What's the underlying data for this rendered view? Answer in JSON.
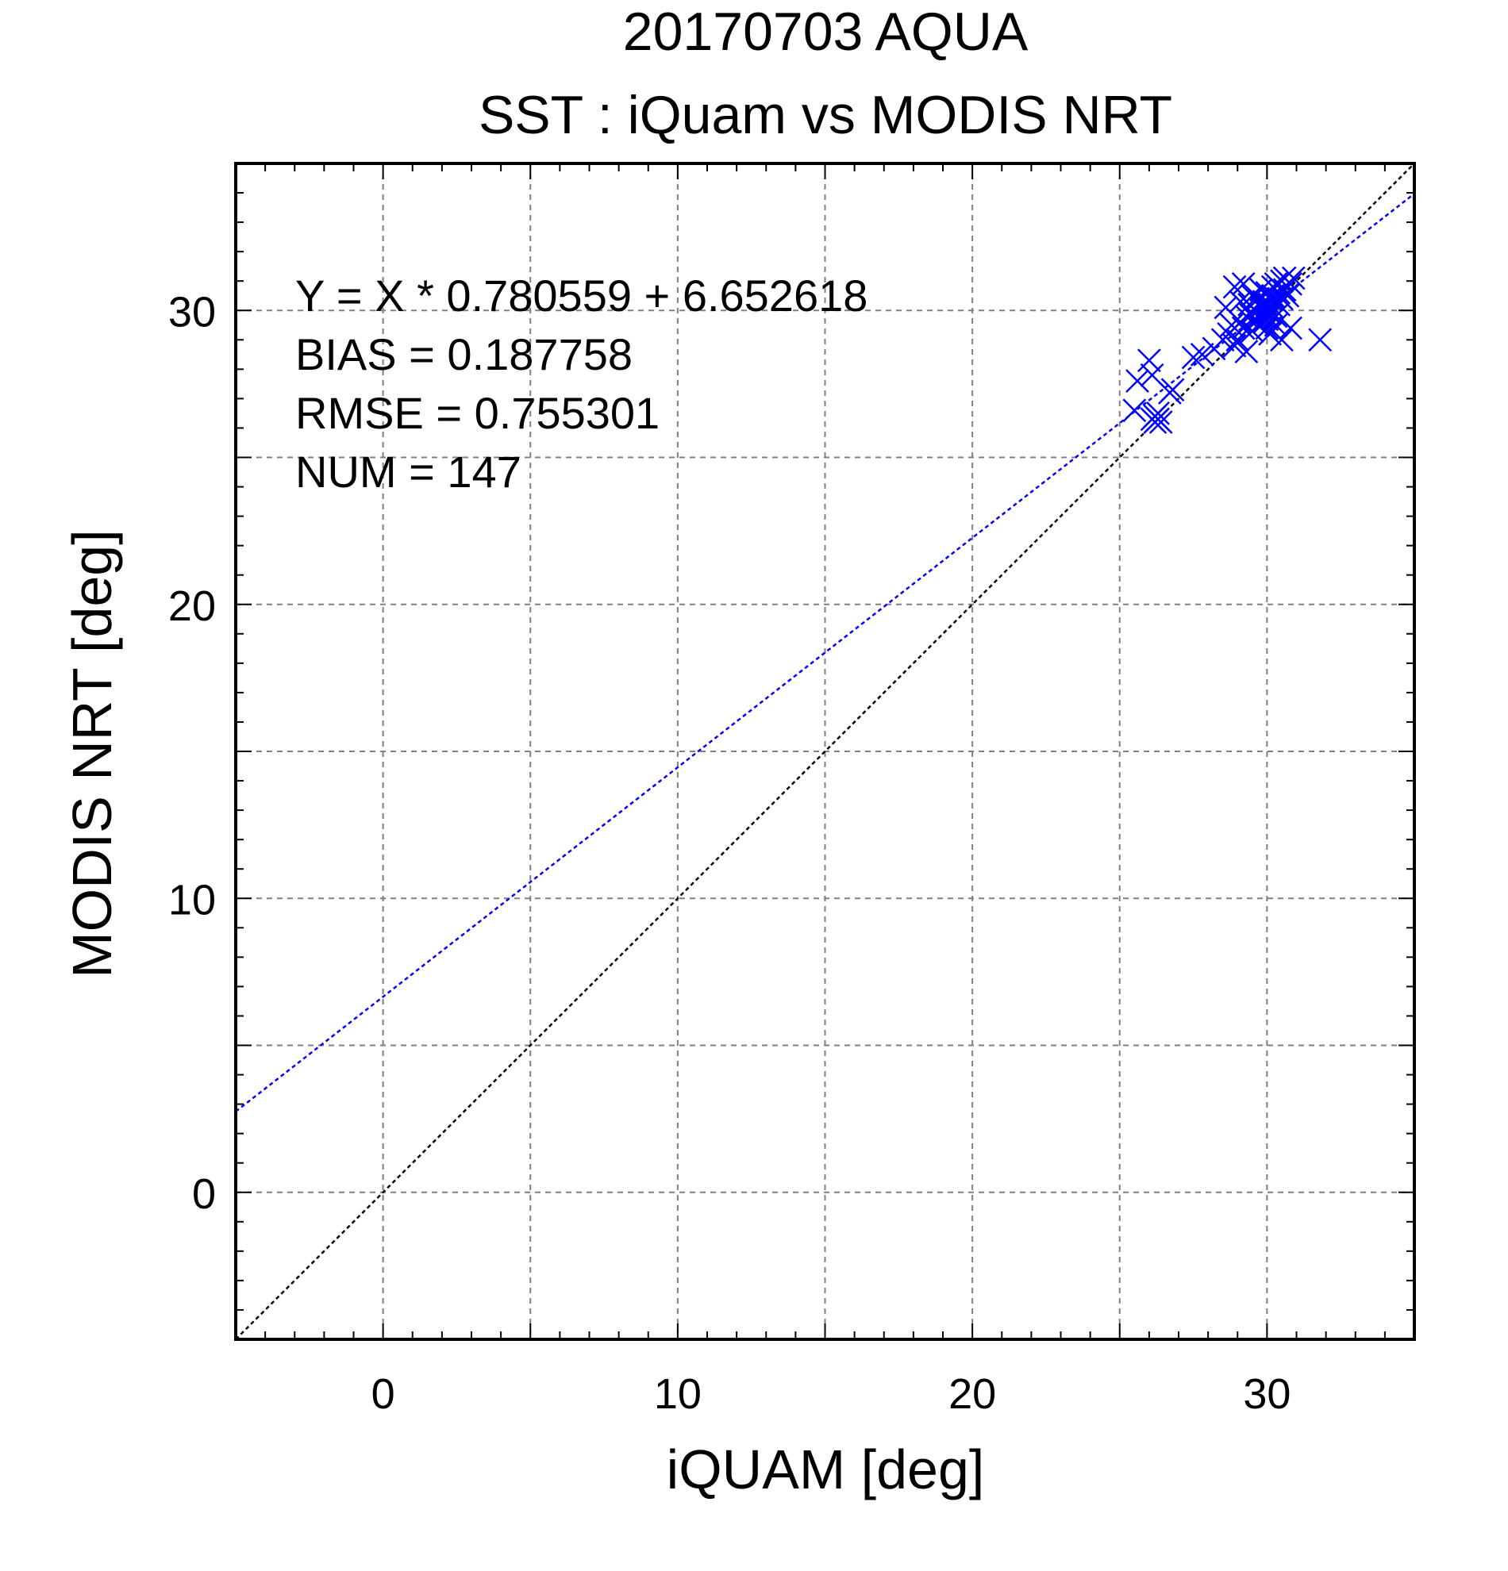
{
  "chart_data": {
    "type": "scatter",
    "title": "20170703 AQUA",
    "subtitle": "SST : iQuam vs MODIS NRT",
    "xlabel": "iQUAM [deg]",
    "ylabel": "MODIS NRT [deg]",
    "xlim": [
      -5,
      35
    ],
    "ylim": [
      -5,
      35
    ],
    "xticks": [
      0,
      10,
      20,
      30
    ],
    "yticks": [
      0,
      10,
      20,
      30
    ],
    "xtick_labels": [
      "0",
      "10",
      "20",
      "30"
    ],
    "ytick_labels": [
      "0",
      "10",
      "20",
      "30"
    ],
    "grid": true,
    "stats": {
      "equation": "Y = X * 0.780559 + 6.652618",
      "bias": "BIAS = 0.187758",
      "rmse": "RMSE = 0.755301",
      "num": "NUM = 147"
    },
    "lines": [
      {
        "kind": "regression",
        "slope": 0.780559,
        "intercept": 6.652618,
        "color": "#0000ff"
      },
      {
        "kind": "identity",
        "slope": 1,
        "intercept": 0,
        "color": "#000000"
      }
    ],
    "marker_color": "#0000ff",
    "points": [
      [
        25.6,
        27.6
      ],
      [
        26.0,
        28.3
      ],
      [
        26.1,
        27.8
      ],
      [
        25.5,
        26.6
      ],
      [
        26.1,
        26.3
      ],
      [
        26.2,
        26.2
      ],
      [
        26.3,
        26.3
      ],
      [
        26.2,
        26.4
      ],
      [
        26.4,
        26.2
      ],
      [
        26.3,
        26.5
      ],
      [
        26.7,
        27.2
      ],
      [
        26.8,
        27.3
      ],
      [
        27.5,
        28.4
      ],
      [
        27.8,
        28.5
      ],
      [
        28.2,
        28.7
      ],
      [
        28.5,
        29.0
      ],
      [
        28.6,
        30.1
      ],
      [
        28.7,
        29.2
      ],
      [
        28.8,
        29.5
      ],
      [
        28.9,
        28.8
      ],
      [
        28.9,
        30.8
      ],
      [
        29.0,
        29.0
      ],
      [
        29.1,
        29.6
      ],
      [
        29.1,
        30.3
      ],
      [
        29.2,
        29.4
      ],
      [
        29.2,
        30.9
      ],
      [
        29.3,
        29.8
      ],
      [
        29.3,
        28.6
      ],
      [
        29.4,
        30.2
      ],
      [
        29.4,
        29.9
      ],
      [
        29.5,
        30.5
      ],
      [
        29.5,
        29.3
      ],
      [
        29.6,
        29.7
      ],
      [
        29.6,
        30.0
      ],
      [
        29.7,
        30.4
      ],
      [
        29.7,
        29.5
      ],
      [
        29.8,
        30.1
      ],
      [
        29.8,
        29.8
      ],
      [
        29.8,
        30.7
      ],
      [
        29.9,
        29.6
      ],
      [
        29.9,
        30.3
      ],
      [
        29.9,
        30.0
      ],
      [
        30.0,
        30.2
      ],
      [
        30.0,
        29.7
      ],
      [
        30.0,
        30.6
      ],
      [
        30.0,
        29.4
      ],
      [
        30.1,
        30.0
      ],
      [
        30.1,
        30.4
      ],
      [
        30.1,
        29.9
      ],
      [
        30.2,
        30.1
      ],
      [
        30.2,
        30.8
      ],
      [
        30.2,
        30.5
      ],
      [
        30.3,
        30.3
      ],
      [
        30.3,
        29.8
      ],
      [
        30.3,
        30.9
      ],
      [
        30.4,
        30.6
      ],
      [
        30.4,
        30.2
      ],
      [
        30.5,
        31.0
      ],
      [
        30.5,
        30.4
      ],
      [
        30.6,
        30.7
      ],
      [
        30.6,
        31.1
      ],
      [
        30.7,
        30.5
      ],
      [
        30.8,
        30.9
      ],
      [
        30.9,
        31.1
      ],
      [
        30.5,
        29.0
      ],
      [
        30.8,
        29.4
      ],
      [
        31.8,
        29.0
      ],
      [
        30.3,
        29.5
      ],
      [
        30.1,
        29.2
      ]
    ]
  }
}
